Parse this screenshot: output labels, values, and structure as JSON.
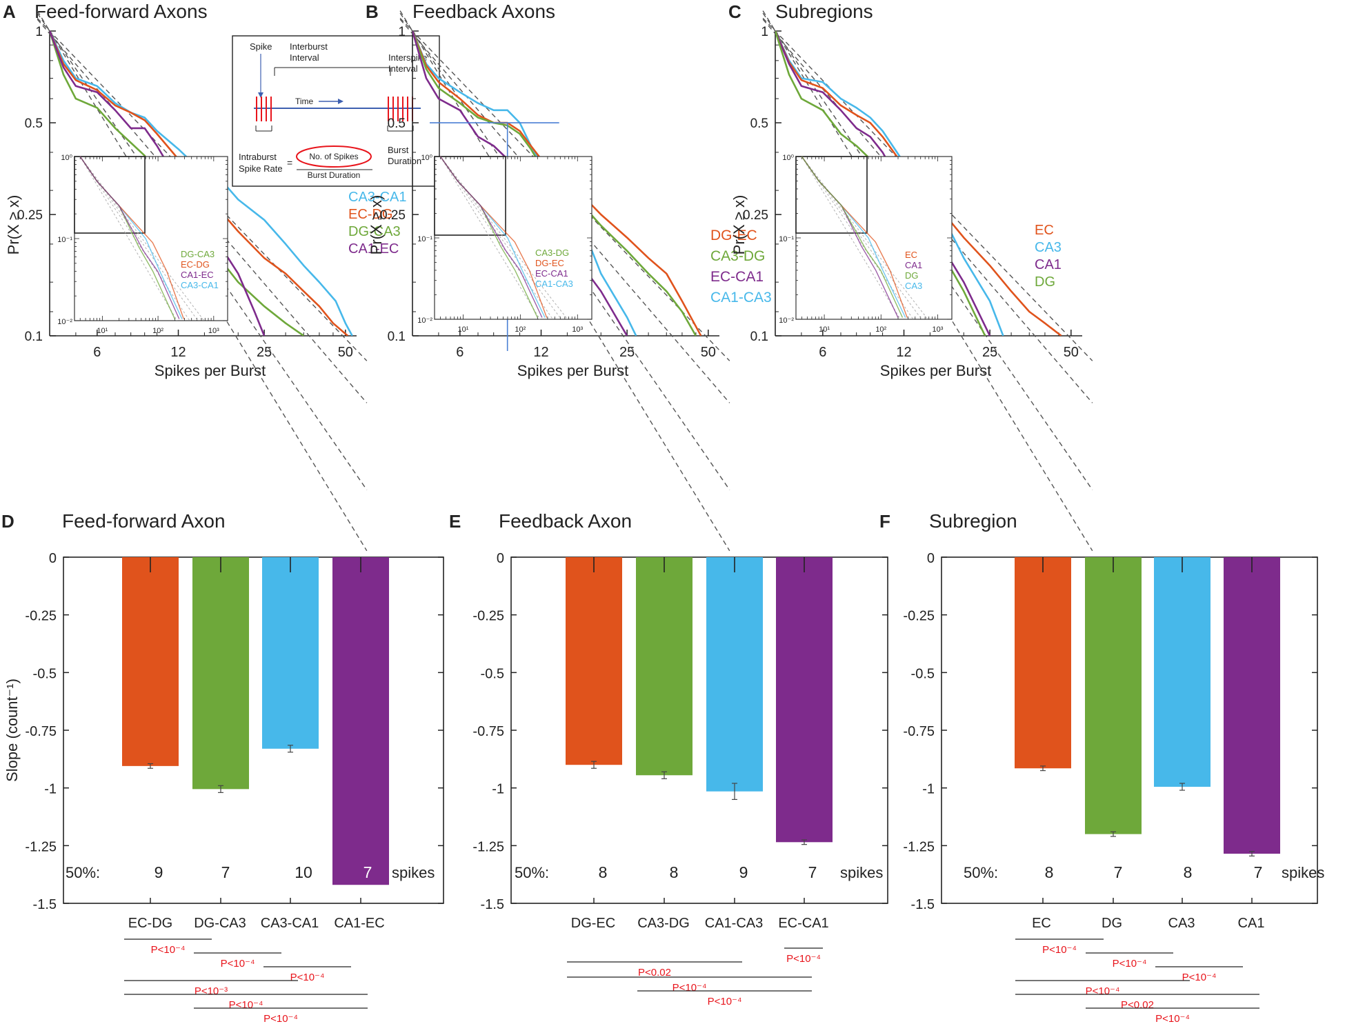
{
  "colors": {
    "orange": "#e0531c",
    "green": "#6ea83a",
    "blue": "#47b8ea",
    "purple": "#7e2b8c",
    "red": "#e8141b",
    "fit": "#555555"
  },
  "top_common": {
    "xlabel": "Spikes per Burst",
    "ylabel": "Pr(X ≥ x)",
    "x_ticks": [
      "6",
      "12",
      "25",
      "50"
    ],
    "y_ticks": [
      "1",
      "0.5",
      "0.25",
      "0.1"
    ],
    "inset_x_ticks": [
      "10¹",
      "10²",
      "10³"
    ],
    "inset_y_ticks": [
      "10⁰",
      "10⁻¹",
      "10⁻²"
    ]
  },
  "bottom_common": {
    "ylabel": "Slope (count⁻¹)",
    "y_ticks": [
      "0",
      "-0.25",
      "-0.5",
      "-0.75",
      "-1",
      "-1.25",
      "-1.5"
    ],
    "prefix": "50%:",
    "suffix": "spikes"
  },
  "diagram": {
    "spike": "Spike",
    "interburst": [
      "Interburst",
      "Interval"
    ],
    "interspike": [
      "Interspike",
      "Interval"
    ],
    "time": "Time",
    "intraburst": [
      "Intraburst",
      "Spike Rate"
    ],
    "equals": "=",
    "numerator": "No. of Spikes",
    "denominator": "Burst Duration",
    "burst_duration": [
      "Burst",
      "Duration"
    ]
  },
  "chart_data": [
    {
      "panel": "A",
      "type": "line",
      "title": "Feed-forward Axons",
      "xlabel": "Spikes per Burst",
      "ylabel": "Pr(X ≥ x)",
      "x_scale": "log",
      "y_scale": "log",
      "xlim": [
        4,
        55
      ],
      "ylim": [
        0.1,
        1
      ],
      "legend": [
        "CA3-CA1",
        "EC-DG",
        "DG-CA3",
        "CA1-EC"
      ],
      "series": [
        {
          "name": "CA3-CA1",
          "color": "blue",
          "x": [
            4,
            4.5,
            5,
            6,
            7,
            8,
            9,
            10,
            12,
            14,
            17,
            20,
            25,
            30,
            35,
            40,
            46,
            50,
            53
          ],
          "y": [
            1,
            0.8,
            0.7,
            0.66,
            0.58,
            0.54,
            0.52,
            0.47,
            0.41,
            0.36,
            0.33,
            0.28,
            0.24,
            0.2,
            0.17,
            0.15,
            0.13,
            0.11,
            0.1
          ]
        },
        {
          "name": "EC-DG",
          "color": "orange",
          "x": [
            4,
            4.5,
            5,
            6,
            7,
            8,
            9,
            10,
            12,
            14,
            17,
            20,
            25,
            30,
            35,
            40,
            45,
            51
          ],
          "y": [
            1,
            0.78,
            0.69,
            0.64,
            0.57,
            0.54,
            0.51,
            0.46,
            0.38,
            0.31,
            0.26,
            0.22,
            0.18,
            0.16,
            0.14,
            0.125,
            0.11,
            0.1
          ]
        },
        {
          "name": "DG-CA3",
          "color": "green",
          "x": [
            4,
            4.5,
            5,
            6,
            7,
            8,
            9,
            10,
            12,
            14,
            17,
            20,
            25,
            30,
            35
          ],
          "y": [
            1,
            0.72,
            0.6,
            0.56,
            0.48,
            0.43,
            0.39,
            0.34,
            0.27,
            0.22,
            0.18,
            0.15,
            0.125,
            0.11,
            0.1
          ]
        },
        {
          "name": "CA1-EC",
          "color": "purple",
          "x": [
            4,
            4.5,
            5,
            6,
            7,
            8,
            9,
            10,
            12,
            14,
            17,
            20,
            23,
            25
          ],
          "y": [
            1,
            0.76,
            0.66,
            0.63,
            0.55,
            0.48,
            0.48,
            0.42,
            0.32,
            0.25,
            0.2,
            0.16,
            0.12,
            0.1
          ]
        }
      ],
      "inset_labels": [
        "DG-CA3",
        "EC-DG",
        "CA1-EC",
        "CA3-CA1"
      ]
    },
    {
      "panel": "B",
      "type": "line",
      "title": "Feedback Axons",
      "xlabel": "Spikes per Burst",
      "ylabel": "Pr(X ≥ x)",
      "x_scale": "log",
      "y_scale": "log",
      "xlim": [
        4,
        55
      ],
      "ylim": [
        0.1,
        1
      ],
      "legend": [
        "DG-EC",
        "CA3-DG",
        "EC-CA1",
        "CA1-CA3"
      ],
      "series": [
        {
          "name": "CA1-CA3",
          "color": "blue",
          "x": [
            4,
            4.5,
            5,
            6,
            7,
            8,
            9,
            10,
            11,
            12,
            14,
            17,
            20,
            23,
            25,
            27
          ],
          "y": [
            1,
            0.78,
            0.7,
            0.63,
            0.58,
            0.55,
            0.55,
            0.5,
            0.42,
            0.37,
            0.3,
            0.23,
            0.16,
            0.13,
            0.115,
            0.1
          ]
        },
        {
          "name": "DG-EC",
          "color": "orange",
          "x": [
            4,
            4.5,
            5,
            6,
            7,
            8,
            9,
            10,
            11,
            12,
            14,
            17,
            20,
            25,
            30,
            35,
            40,
            47
          ],
          "y": [
            1,
            0.77,
            0.68,
            0.6,
            0.53,
            0.5,
            0.5,
            0.47,
            0.42,
            0.38,
            0.34,
            0.29,
            0.25,
            0.21,
            0.18,
            0.16,
            0.13,
            0.1
          ]
        },
        {
          "name": "CA3-DG",
          "color": "green",
          "x": [
            4,
            4.5,
            5,
            6,
            7,
            8,
            9,
            10,
            11,
            12,
            14,
            17,
            20,
            25,
            30,
            35,
            40,
            45
          ],
          "y": [
            1,
            0.75,
            0.65,
            0.58,
            0.52,
            0.5,
            0.49,
            0.46,
            0.41,
            0.36,
            0.32,
            0.27,
            0.23,
            0.19,
            0.16,
            0.14,
            0.12,
            0.1
          ]
        },
        {
          "name": "EC-CA1",
          "color": "purple",
          "x": [
            4,
            4.5,
            5,
            6,
            7,
            8,
            9,
            10,
            11,
            12,
            14,
            17,
            20,
            25
          ],
          "y": [
            1,
            0.7,
            0.6,
            0.55,
            0.45,
            0.42,
            0.38,
            0.34,
            0.3,
            0.27,
            0.22,
            0.17,
            0.14,
            0.1
          ]
        }
      ],
      "crosshair": {
        "x": 9,
        "y": 0.5
      },
      "inset_labels": [
        "CA3-DG",
        "DG-EC",
        "EC-CA1",
        "CA1-CA3"
      ]
    },
    {
      "panel": "C",
      "type": "line",
      "title": "Subregions",
      "xlabel": "Spikes per Burst",
      "ylabel": "Pr(X ≥ x)",
      "x_scale": "log",
      "y_scale": "log",
      "xlim": [
        4,
        55
      ],
      "ylim": [
        0.1,
        1
      ],
      "legend": [
        "EC",
        "CA3",
        "CA1",
        "DG"
      ],
      "series": [
        {
          "name": "CA3",
          "color": "blue",
          "x": [
            4,
            4.5,
            5,
            6,
            7,
            8,
            9,
            10,
            12,
            14,
            17,
            20,
            25,
            28
          ],
          "y": [
            1,
            0.8,
            0.7,
            0.68,
            0.6,
            0.56,
            0.52,
            0.47,
            0.37,
            0.3,
            0.24,
            0.18,
            0.13,
            0.1
          ]
        },
        {
          "name": "EC",
          "color": "orange",
          "x": [
            4,
            4.5,
            5,
            6,
            7,
            8,
            9,
            10,
            12,
            14,
            17,
            20,
            25,
            30,
            35,
            40,
            46
          ],
          "y": [
            1,
            0.79,
            0.69,
            0.65,
            0.57,
            0.53,
            0.5,
            0.45,
            0.36,
            0.3,
            0.25,
            0.21,
            0.17,
            0.14,
            0.12,
            0.11,
            0.1
          ]
        },
        {
          "name": "CA1",
          "color": "purple",
          "x": [
            4,
            4.5,
            5,
            6,
            7,
            8,
            9,
            10,
            12,
            14,
            17,
            20,
            25
          ],
          "y": [
            1,
            0.78,
            0.66,
            0.63,
            0.55,
            0.48,
            0.45,
            0.4,
            0.3,
            0.25,
            0.19,
            0.15,
            0.1
          ]
        },
        {
          "name": "DG",
          "color": "green",
          "x": [
            4,
            4.5,
            5,
            6,
            7,
            8,
            9,
            10,
            12,
            14,
            17,
            20,
            24
          ],
          "y": [
            1,
            0.72,
            0.6,
            0.55,
            0.46,
            0.42,
            0.38,
            0.34,
            0.28,
            0.23,
            0.18,
            0.14,
            0.1
          ]
        }
      ],
      "inset_labels": [
        "EC",
        "CA1",
        "DG",
        "CA3"
      ]
    },
    {
      "panel": "D",
      "type": "bar",
      "title": "Feed-forward Axon",
      "ylabel": "Slope (count⁻¹)",
      "ylim": [
        -1.5,
        0
      ],
      "categories": [
        "EC-DG",
        "DG-CA3",
        "CA3-CA1",
        "CA1-EC"
      ],
      "colors": [
        "orange",
        "green",
        "blue",
        "purple"
      ],
      "values": [
        -0.905,
        -1.005,
        -0.83,
        -1.42
      ],
      "errors": [
        0.01,
        0.015,
        0.015,
        0
      ],
      "spikes_50": [
        "9",
        "7",
        "10",
        "7"
      ],
      "pvalues": [
        {
          "from": 0,
          "to": 1,
          "label": "P<10⁻⁴"
        },
        {
          "from": 1,
          "to": 2,
          "label": "P<10⁻⁴"
        },
        {
          "from": 2,
          "to": 3,
          "label": "P<10⁻⁴"
        },
        {
          "from": 0,
          "to": 2,
          "label": "P<10⁻³"
        },
        {
          "from": 0,
          "to": 3,
          "label": "P<10⁻⁴"
        },
        {
          "from": 1,
          "to": 3,
          "label": "P<10⁻⁴"
        }
      ]
    },
    {
      "panel": "E",
      "type": "bar",
      "title": "Feedback Axon",
      "ylabel": "Slope (count⁻¹)",
      "ylim": [
        -1.5,
        0
      ],
      "categories": [
        "DG-EC",
        "CA3-DG",
        "CA1-CA3",
        "EC-CA1"
      ],
      "colors": [
        "orange",
        "green",
        "blue",
        "purple"
      ],
      "values": [
        -0.9,
        -0.945,
        -1.015,
        -1.235
      ],
      "errors": [
        0.015,
        0.015,
        0.035,
        0.01
      ],
      "spikes_50": [
        "8",
        "8",
        "9",
        "7"
      ],
      "pvalues": [
        {
          "from": 3,
          "to": 3,
          "label": "P<10⁻⁴"
        },
        {
          "from": 0,
          "to": 2,
          "label": "P<0.02"
        },
        {
          "from": 0,
          "to": 3,
          "label": "P<10⁻⁴"
        },
        {
          "from": 1,
          "to": 3,
          "label": "P<10⁻⁴"
        }
      ]
    },
    {
      "panel": "F",
      "type": "bar",
      "title": "Subregion",
      "ylabel": "Slope (count⁻¹)",
      "ylim": [
        -1.5,
        0
      ],
      "categories": [
        "EC",
        "DG",
        "CA3",
        "CA1"
      ],
      "colors": [
        "orange",
        "green",
        "blue",
        "purple"
      ],
      "values": [
        -0.915,
        -1.2,
        -0.995,
        -1.285
      ],
      "errors": [
        0.01,
        0.01,
        0.015,
        0.01
      ],
      "spikes_50": [
        "8",
        "7",
        "8",
        "7"
      ],
      "pvalues": [
        {
          "from": 0,
          "to": 1,
          "label": "P<10⁻⁴"
        },
        {
          "from": 1,
          "to": 2,
          "label": "P<10⁻⁴"
        },
        {
          "from": 2,
          "to": 3,
          "label": "P<10⁻⁴"
        },
        {
          "from": 0,
          "to": 2,
          "label": "P<10⁻⁴"
        },
        {
          "from": 0,
          "to": 3,
          "label": "P<0.02"
        },
        {
          "from": 1,
          "to": 3,
          "label": "P<10⁻⁴"
        }
      ]
    }
  ]
}
